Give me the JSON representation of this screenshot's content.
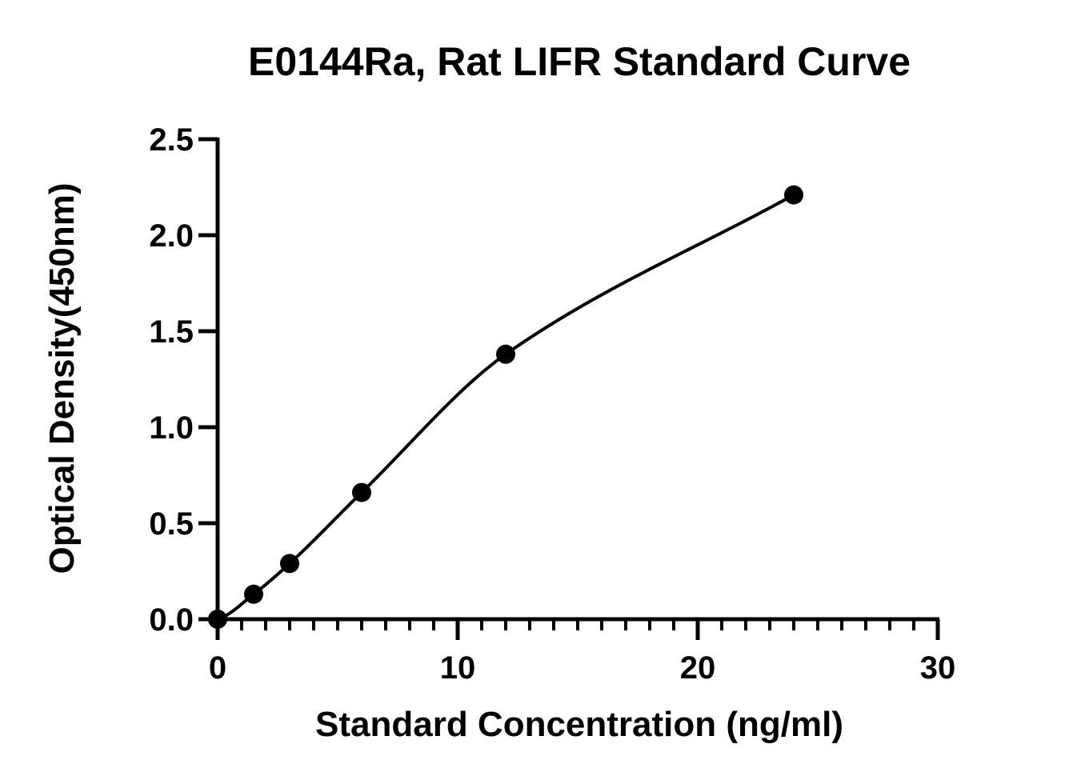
{
  "chart_data": {
    "type": "scatter",
    "title": "E0144Ra, Rat LIFR Standard Curve",
    "xlabel": "Standard Concentration (ng/ml)",
    "ylabel": "Optical Density(450nm)",
    "xlim": [
      0,
      30
    ],
    "ylim": [
      0,
      2.5
    ],
    "x_ticks": [
      "0",
      "10",
      "20",
      "30"
    ],
    "y_ticks": [
      "0.0",
      "0.5",
      "1.0",
      "1.5",
      "2.0",
      "2.5"
    ],
    "x_minor_step": 1,
    "grid": false,
    "legend": "none",
    "series": [
      {
        "x": [
          0,
          1.5,
          3,
          6,
          12,
          24
        ],
        "y": [
          0.0,
          0.13,
          0.29,
          0.66,
          1.38,
          2.21
        ],
        "marker": "filled-circle",
        "fit_curve": true
      }
    ],
    "colors": {
      "line": "#000000",
      "marker": "#000000"
    }
  }
}
